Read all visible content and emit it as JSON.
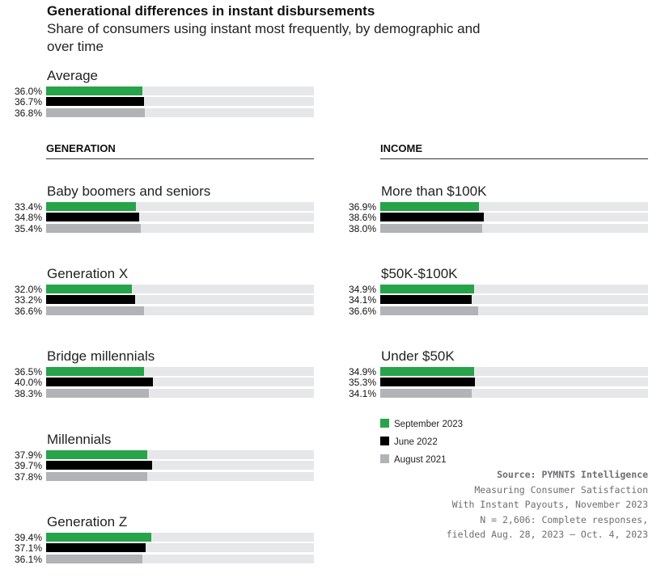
{
  "title": "Generational differences in instant disbursements",
  "subtitle": "Share of consumers using instant most frequently, by demographic and over time",
  "colors": {
    "September 2023": "#27a34a",
    "June 2022": "#000000",
    "August 2021": "#b1b3b6",
    "track": "#e6e7e8"
  },
  "chart_data": {
    "type": "bar",
    "orientation": "horizontal",
    "xlim": [
      0,
      100
    ],
    "unit": "%",
    "series_names": [
      "September 2023",
      "June 2022",
      "August 2021"
    ],
    "average": {
      "label": "Average",
      "values": [
        36.0,
        36.7,
        36.8
      ]
    },
    "sections": [
      {
        "heading": "GENERATION",
        "groups": [
          {
            "label": "Baby boomers and seniors",
            "values": [
              33.4,
              34.8,
              35.4
            ]
          },
          {
            "label": "Generation X",
            "values": [
              32.0,
              33.2,
              36.6
            ]
          },
          {
            "label": "Bridge millennials",
            "values": [
              36.5,
              40.0,
              38.3
            ]
          },
          {
            "label": "Millennials",
            "values": [
              37.9,
              39.7,
              37.8
            ]
          },
          {
            "label": "Generation Z",
            "values": [
              39.4,
              37.1,
              36.1
            ]
          }
        ]
      },
      {
        "heading": "INCOME",
        "groups": [
          {
            "label": "More than $100K",
            "values": [
              36.9,
              38.6,
              38.0
            ]
          },
          {
            "label": "$50K-$100K",
            "values": [
              34.9,
              34.1,
              36.6
            ]
          },
          {
            "label": "Under $50K",
            "values": [
              34.9,
              35.3,
              34.1
            ]
          }
        ]
      }
    ],
    "legend": [
      "September 2023",
      "June 2022",
      "August 2021"
    ],
    "legend_placement": "bottom-right"
  },
  "source": {
    "label": "Source: PYMNTS Intelligence",
    "lines": [
      "Measuring Consumer Satisfaction",
      "With Instant Payouts, November 2023",
      "N = 2,606: Complete responses,",
      "fielded Aug. 28, 2023 – Oct. 4, 2023"
    ]
  }
}
